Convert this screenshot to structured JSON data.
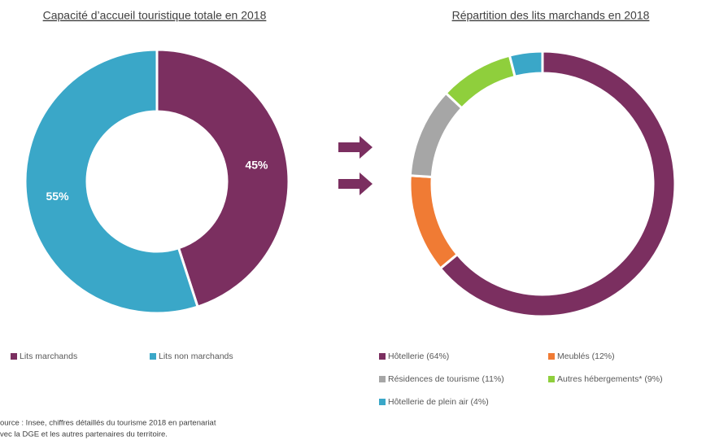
{
  "chart_data": [
    {
      "type": "donut",
      "title": "Capacité d’accueil touristique totale en 2018",
      "categories": [
        "Lits marchands",
        "Lits non marchands"
      ],
      "values": [
        45,
        55
      ],
      "value_labels": [
        "45%",
        "55%"
      ],
      "colors": [
        "#7b2f60",
        "#3aa7c8"
      ]
    },
    {
      "type": "donut",
      "title": "Répartition des lits marchands en 2018",
      "categories": [
        "Hôtellerie (64%)",
        "Meublés (12%)",
        "Résidences de tourisme (11%)",
        "Autres hébergements* (9%)",
        "Hôtellerie de plein air (4%)"
      ],
      "values": [
        64,
        12,
        11,
        9,
        4
      ],
      "colors": [
        "#7b2f60",
        "#f07b34",
        "#a6a6a6",
        "#8fcf3c",
        "#3aa7c8"
      ]
    }
  ],
  "source": [
    "ource : Insee, chiffres détaillés du tourisme 2018 en partenariat",
    "vec la DGE et les autres partenaires du territoire."
  ]
}
